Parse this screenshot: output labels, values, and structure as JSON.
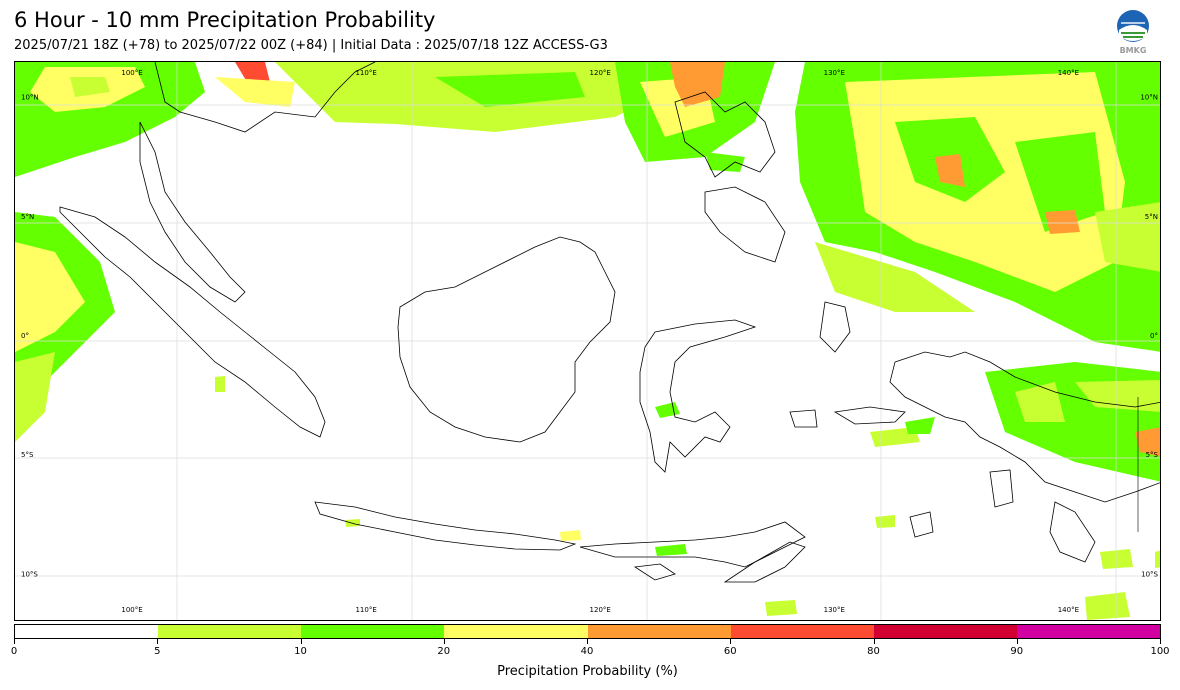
{
  "header": {
    "title": "6 Hour - 10 mm Precipitation Probability",
    "subtitle": "2025/07/21 18Z (+78) to 2025/07/22 00Z (+84) | Initial Data : 2025/07/18 12Z ACCESS-G3",
    "logo_text": "BMKG"
  },
  "map": {
    "lon_range": [
      95,
      144
    ],
    "lat_range": [
      -12,
      11.5
    ],
    "lon_ticks": [
      {
        "lon": 100,
        "label": "100°E"
      },
      {
        "lon": 110,
        "label": "110°E"
      },
      {
        "lon": 120,
        "label": "120°E"
      },
      {
        "lon": 130,
        "label": "130°E"
      },
      {
        "lon": 140,
        "label": "140°E"
      }
    ],
    "lat_ticks": [
      {
        "lat": 10,
        "label": "10°N"
      },
      {
        "lat": 5,
        "label": "5°N"
      },
      {
        "lat": 0,
        "label": "0°"
      },
      {
        "lat": -5,
        "label": "5°S"
      },
      {
        "lat": -10,
        "label": "10°S"
      }
    ],
    "gridlines": true,
    "coastline_color": "#000000"
  },
  "colorbar": {
    "title": "Precipitation Probability (%)",
    "ticks": [
      "0",
      "5",
      "10",
      "20",
      "40",
      "60",
      "80",
      "90",
      "100"
    ],
    "colors": [
      "#ffffff",
      "#c8ff32",
      "#64ff00",
      "#ffff64",
      "#ff9b32",
      "#ff4b32",
      "#d20032",
      "#d200a0"
    ]
  }
}
